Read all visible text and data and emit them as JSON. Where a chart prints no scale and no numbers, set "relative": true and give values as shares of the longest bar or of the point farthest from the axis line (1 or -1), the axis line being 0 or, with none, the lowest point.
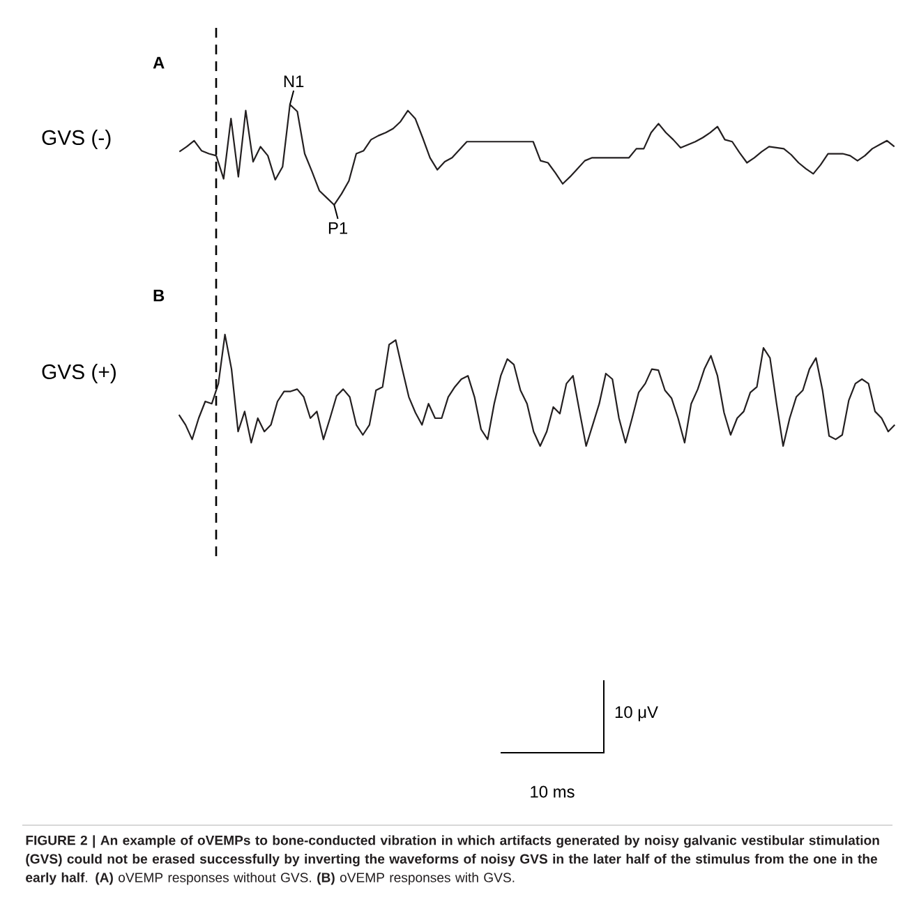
{
  "chart_data": [
    {
      "type": "line",
      "title": "A",
      "ylabel": "GVS (-)",
      "relative": true,
      "tick_labels": false,
      "marker": "none",
      "line_style": "solid",
      "categories": [
        null,
        null,
        null,
        null,
        null,
        null,
        null,
        null,
        null,
        null,
        null,
        null,
        null,
        null,
        null,
        null,
        null,
        null,
        null,
        null,
        null,
        null,
        null,
        null,
        null,
        null,
        null,
        null,
        null,
        null,
        null,
        null,
        null,
        null,
        null,
        null,
        null,
        null,
        null,
        null,
        null,
        null,
        null,
        null,
        null,
        null,
        null,
        null,
        null,
        null,
        null,
        null,
        null,
        null,
        null,
        null,
        null,
        null,
        null,
        null,
        null,
        null,
        null,
        null,
        null,
        null,
        null,
        null,
        null,
        null,
        null,
        null,
        null,
        null,
        null,
        null,
        null,
        null,
        null,
        null,
        null,
        null,
        null,
        null,
        null,
        null,
        null,
        null,
        null,
        null,
        null,
        null,
        null,
        null,
        null,
        null,
        null,
        null
      ],
      "series": [
        {
          "color": "#231f20",
          "values": [
            0.53,
            0.58,
            0.64,
            0.54,
            0.51,
            0.49,
            0.26,
            0.86,
            0.28,
            0.94,
            0.43,
            0.58,
            0.49,
            0.25,
            0.38,
            1.0,
            0.93,
            0.51,
            0.33,
            0.14,
            0.07,
            0.0,
            0.11,
            0.24,
            0.51,
            0.54,
            0.65,
            0.69,
            0.72,
            0.76,
            0.83,
            0.94,
            0.86,
            0.67,
            0.47,
            0.35,
            0.43,
            0.47,
            0.55,
            0.63,
            0.63,
            0.63,
            0.63,
            0.63,
            0.63,
            0.63,
            0.63,
            0.63,
            0.63,
            0.44,
            0.42,
            0.32,
            0.21,
            0.28,
            0.36,
            0.44,
            0.47,
            0.47,
            0.47,
            0.47,
            0.47,
            0.47,
            0.56,
            0.56,
            0.72,
            0.81,
            0.72,
            0.65,
            0.57,
            0.6,
            0.63,
            0.67,
            0.72,
            0.78,
            0.65,
            0.63,
            0.52,
            0.42,
            0.47,
            0.53,
            0.58,
            0.57,
            0.56,
            0.5,
            0.42,
            0.36,
            0.31,
            0.4,
            0.51,
            0.51,
            0.51,
            0.49,
            0.44,
            0.49,
            0.56,
            0.6,
            0.64,
            0.58
          ]
        }
      ],
      "annotations": [
        {
          "text": "N1",
          "y": 1.0
        },
        {
          "text": "P1",
          "y": 0.0
        }
      ]
    },
    {
      "type": "line",
      "title": "B",
      "ylabel": "GVS (+)",
      "relative": true,
      "tick_labels": false,
      "marker": "none",
      "line_style": "solid",
      "categories": [
        null,
        null,
        null,
        null,
        null,
        null,
        null,
        null,
        null,
        null,
        null,
        null,
        null,
        null,
        null,
        null,
        null,
        null,
        null,
        null,
        null,
        null,
        null,
        null,
        null,
        null,
        null,
        null,
        null,
        null,
        null,
        null,
        null,
        null,
        null,
        null,
        null,
        null,
        null,
        null,
        null,
        null,
        null,
        null,
        null,
        null,
        null,
        null,
        null,
        null,
        null,
        null,
        null,
        null,
        null,
        null,
        null,
        null,
        null,
        null,
        null,
        null,
        null,
        null,
        null,
        null,
        null,
        null,
        null,
        null,
        null,
        null,
        null,
        null,
        null,
        null,
        null,
        null,
        null,
        null,
        null,
        null,
        null,
        null,
        null,
        null,
        null,
        null,
        null,
        null,
        null,
        null,
        null,
        null,
        null,
        null,
        null,
        null,
        null,
        null,
        null,
        null,
        null,
        null,
        null,
        null,
        null,
        null,
        null,
        null
      ],
      "series": [
        {
          "color": "#231f20",
          "values": [
            0.28,
            0.19,
            0.06,
            0.25,
            0.4,
            0.38,
            0.56,
            1.0,
            0.69,
            0.13,
            0.31,
            0.03,
            0.25,
            0.13,
            0.19,
            0.4,
            0.49,
            0.49,
            0.51,
            0.44,
            0.25,
            0.31,
            0.06,
            0.25,
            0.45,
            0.51,
            0.44,
            0.19,
            0.1,
            0.19,
            0.5,
            0.53,
            0.91,
            0.95,
            0.69,
            0.44,
            0.3,
            0.19,
            0.38,
            0.25,
            0.25,
            0.44,
            0.53,
            0.6,
            0.63,
            0.44,
            0.15,
            0.06,
            0.38,
            0.63,
            0.78,
            0.73,
            0.5,
            0.38,
            0.13,
            0.0,
            0.13,
            0.35,
            0.29,
            0.56,
            0.63,
            0.31,
            0.0,
            0.19,
            0.38,
            0.65,
            0.6,
            0.25,
            0.03,
            0.25,
            0.48,
            0.56,
            0.69,
            0.68,
            0.5,
            0.43,
            0.25,
            0.03,
            0.38,
            0.51,
            0.69,
            0.81,
            0.63,
            0.3,
            0.1,
            0.25,
            0.31,
            0.48,
            0.53,
            0.88,
            0.79,
            0.38,
            0.0,
            0.25,
            0.44,
            0.5,
            0.69,
            0.79,
            0.5,
            0.09,
            0.06,
            0.1,
            0.41,
            0.56,
            0.6,
            0.56,
            0.31,
            0.25,
            0.13,
            0.19
          ]
        }
      ],
      "annotations": [
        "10 μV",
        "10 ms",
        "**FIGURE 2 | An example of oVEMPs to bone-conducted vibration in which artifacts generated by noisy galvanic vestibular stimulation (GVS) could not be erased successfully by inverting the waveforms of noisy GVS in the later half of the stimulus from the one in the early half**. **(A)** oVEMP responses without GVS. **(B)** oVEMP responses with GVS."
      ]
    }
  ]
}
